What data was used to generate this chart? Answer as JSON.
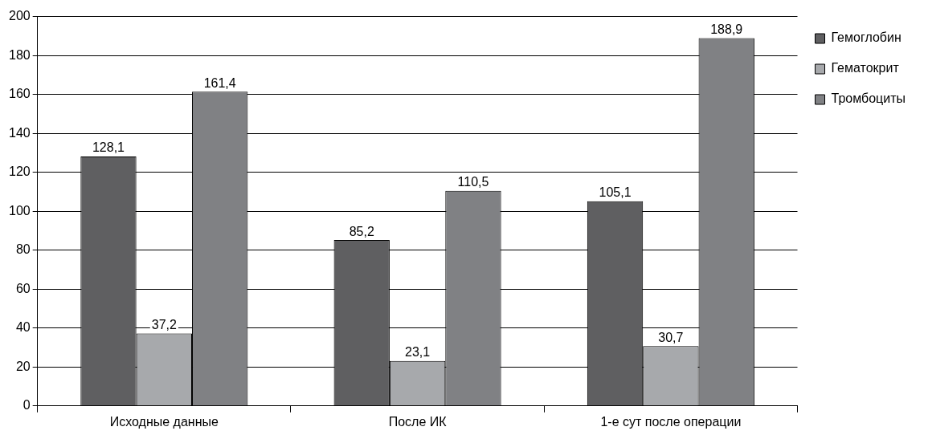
{
  "chart_data": {
    "type": "bar",
    "categories": [
      "Исходные данные",
      "После ИК",
      "1-е сут после операции"
    ],
    "series": [
      {
        "name": "Гемоглобин",
        "color": "#5f5f61",
        "values": [
          128.1,
          85.2,
          105.1
        ],
        "value_labels": [
          "128,1",
          "85,2",
          "105,1"
        ]
      },
      {
        "name": "Гематокрит",
        "color": "#a7a9ac",
        "values": [
          37.2,
          23.1,
          30.7
        ],
        "value_labels": [
          "37,2",
          "23,1",
          "30,7"
        ]
      },
      {
        "name": "Тромбоциты",
        "color": "#808184",
        "values": [
          161.4,
          110.5,
          188.9
        ],
        "value_labels": [
          "161,4",
          "110,5",
          "188,9"
        ]
      }
    ],
    "ylim": [
      0,
      200
    ],
    "yticks": [
      0,
      20,
      40,
      60,
      80,
      100,
      120,
      140,
      160,
      180,
      200
    ],
    "grid": "y",
    "legend": "top right"
  }
}
